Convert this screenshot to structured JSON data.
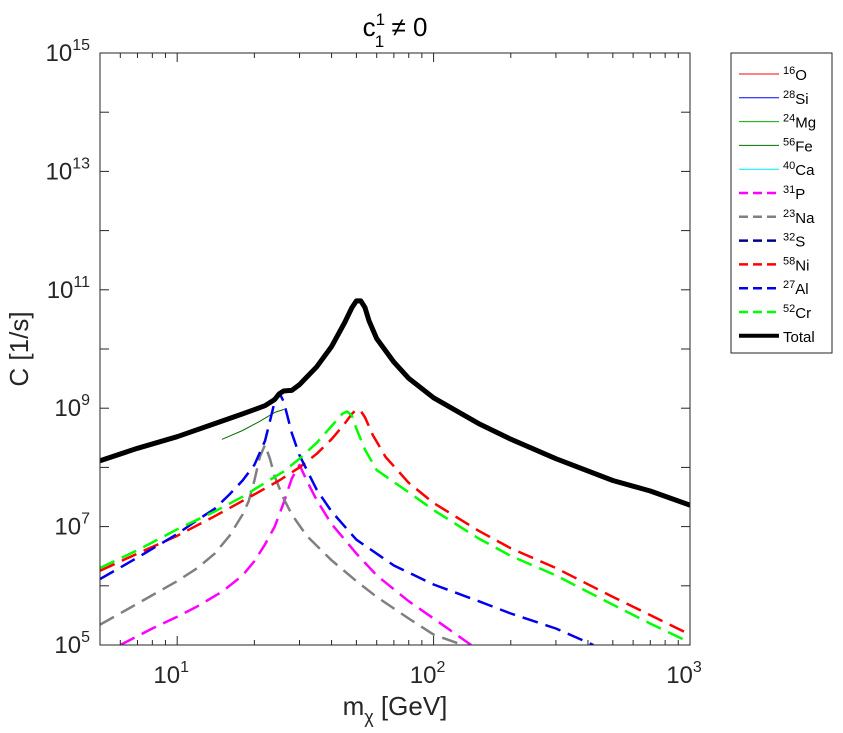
{
  "chart_data": {
    "type": "line",
    "title_main": "c",
    "title_sup": "1",
    "title_sub": "1",
    "title_rest": " ≠ 0",
    "xlabel_main": "m",
    "xlabel_sub": "χ",
    "xlabel_rest": " [GeV]",
    "ylabel": "C [1/s]",
    "xscale": "log",
    "yscale": "log",
    "xlim": [
      5,
      1000
    ],
    "ylim": [
      100000,
      1000000000000000
    ],
    "x_ticks": [
      {
        "base": "10",
        "exp": "1",
        "value": 10
      },
      {
        "base": "10",
        "exp": "2",
        "value": 100
      },
      {
        "base": "10",
        "exp": "3",
        "value": 1000
      }
    ],
    "y_ticks": [
      {
        "base": "10",
        "exp": "5",
        "value": 100000
      },
      {
        "base": "10",
        "exp": "7",
        "value": 10000000
      },
      {
        "base": "10",
        "exp": "9",
        "value": 1000000000
      },
      {
        "base": "10",
        "exp": "11",
        "value": 100000000000
      },
      {
        "base": "10",
        "exp": "13",
        "value": 10000000000000
      },
      {
        "base": "10",
        "exp": "15",
        "value": 1000000000000000
      }
    ],
    "legend_position": "outside-top-right",
    "series": [
      {
        "name_sup": "16",
        "name": "O",
        "color": "#ff0000",
        "dash": "solid",
        "width": 1,
        "x": [],
        "y": []
      },
      {
        "name_sup": "28",
        "name": "Si",
        "color": "#0000ff",
        "dash": "solid",
        "width": 1,
        "x": [],
        "y": []
      },
      {
        "name_sup": "24",
        "name": "Mg",
        "color": "#00b000",
        "dash": "solid",
        "width": 1,
        "x": [],
        "y": []
      },
      {
        "name_sup": "56",
        "name": "Fe",
        "color": "#007000",
        "dash": "solid",
        "width": 1,
        "x": [
          15,
          18,
          21,
          24,
          26
        ],
        "y": [
          300000000,
          420000000,
          600000000,
          850000000,
          950000000
        ]
      },
      {
        "name_sup": "40",
        "name": "Ca",
        "color": "#00e5ee",
        "dash": "solid",
        "width": 1,
        "x": [],
        "y": []
      },
      {
        "name_sup": "31",
        "name": "P",
        "color": "#ff00ff",
        "dash": "dashed",
        "width": 2.5,
        "x": [
          6,
          8,
          10,
          12,
          15,
          18,
          20,
          22,
          24,
          26,
          28,
          30,
          32,
          35,
          40,
          50,
          60,
          80,
          100,
          140
        ],
        "y": [
          100000,
          190000,
          300000,
          450000,
          800000,
          1500000,
          2600000,
          5000000,
          10000000,
          25000000,
          65000000,
          110000000,
          60000000,
          28000000,
          11000000,
          3500000,
          1500000,
          550000,
          280000,
          100000
        ]
      },
      {
        "name_sup": "23",
        "name": "Na",
        "color": "#808080",
        "dash": "dashed",
        "width": 2.5,
        "x": [
          5,
          7,
          10,
          12,
          14,
          16,
          18,
          19,
          20,
          21,
          22,
          23,
          24,
          26,
          28,
          32,
          40,
          50,
          60,
          80,
          100,
          130
        ],
        "y": [
          220000,
          500000,
          1200000,
          2000000,
          3500000,
          7000000,
          16000000,
          27000000,
          60000000,
          150000000,
          240000000,
          140000000,
          70000000,
          30000000,
          16000000,
          7000000,
          2700000,
          1200000,
          650000,
          280000,
          150000,
          100000
        ]
      },
      {
        "name_sup": "32",
        "name": "S",
        "color": "#00008b",
        "dash": "dashed",
        "width": 2.5,
        "x": [],
        "y": []
      },
      {
        "name_sup": "58",
        "name": "Ni",
        "color": "#ff0000",
        "dash": "dashed",
        "width": 2.5,
        "x": [
          5,
          7,
          10,
          14,
          20,
          25,
          30,
          35,
          40,
          45,
          48,
          50,
          52,
          54,
          58,
          65,
          80,
          100,
          150,
          200,
          300,
          500,
          700,
          1000
        ],
        "y": [
          1800000,
          3500000,
          7000000,
          15000000,
          35000000,
          60000000,
          100000000,
          170000000,
          300000000,
          550000000,
          800000000,
          950000000,
          900000000,
          700000000,
          350000000,
          150000000,
          55000000,
          25000000,
          8500000,
          4300000,
          2000000,
          650000,
          320000,
          150000
        ]
      },
      {
        "name_sup": "27",
        "name": "Al",
        "color": "#0000ee",
        "dash": "dashed",
        "width": 2.5,
        "x": [
          5,
          7,
          10,
          12,
          14,
          16,
          18,
          20,
          22,
          23,
          24,
          25,
          26,
          27,
          28,
          30,
          35,
          40,
          50,
          70,
          100,
          150,
          200,
          300,
          420
        ],
        "y": [
          1300000,
          3000000,
          7500000,
          13000000,
          20000000,
          35000000,
          60000000,
          110000000,
          280000000,
          600000000,
          1300000000,
          1850000000,
          1300000000,
          700000000,
          380000000,
          160000000,
          42000000,
          18000000,
          6000000,
          2200000,
          1050000,
          550000,
          340000,
          190000,
          100000
        ]
      },
      {
        "name_sup": "52",
        "name": "Cr",
        "color": "#00ff00",
        "dash": "dashed",
        "width": 2.5,
        "x": [
          5,
          7,
          10,
          14,
          18,
          22,
          26,
          30,
          35,
          40,
          44,
          46,
          48,
          50,
          54,
          60,
          80,
          100,
          150,
          200,
          300,
          500,
          700,
          1000
        ],
        "y": [
          2000000,
          4000000,
          9000000,
          18000000,
          32000000,
          55000000,
          85000000,
          140000000,
          260000000,
          500000000,
          800000000,
          880000000,
          750000000,
          450000000,
          200000000,
          90000000,
          38000000,
          19000000,
          6300000,
          3200000,
          1500000,
          480000,
          230000,
          110000
        ]
      },
      {
        "name_sup": "",
        "name": "Total",
        "color": "#000000",
        "dash": "solid",
        "width": 5,
        "x": [
          5,
          7,
          10,
          14,
          18,
          22,
          24,
          25,
          26,
          27,
          28,
          30,
          35,
          40,
          45,
          48,
          50,
          52,
          54,
          56,
          60,
          70,
          80,
          100,
          150,
          200,
          300,
          500,
          700,
          1000
        ],
        "y": [
          130000000,
          210000000,
          330000000,
          550000000,
          800000000,
          1100000000,
          1400000000,
          1750000000,
          1950000000,
          1980000000,
          2000000000,
          2500000000,
          5000000000,
          11000000000,
          28000000000,
          50000000000,
          65000000000,
          65000000000,
          50000000000,
          30000000000,
          15000000000,
          6000000000,
          3200000000,
          1500000000,
          550000000,
          300000000,
          140000000,
          60000000,
          40000000,
          23000000
        ]
      }
    ]
  }
}
